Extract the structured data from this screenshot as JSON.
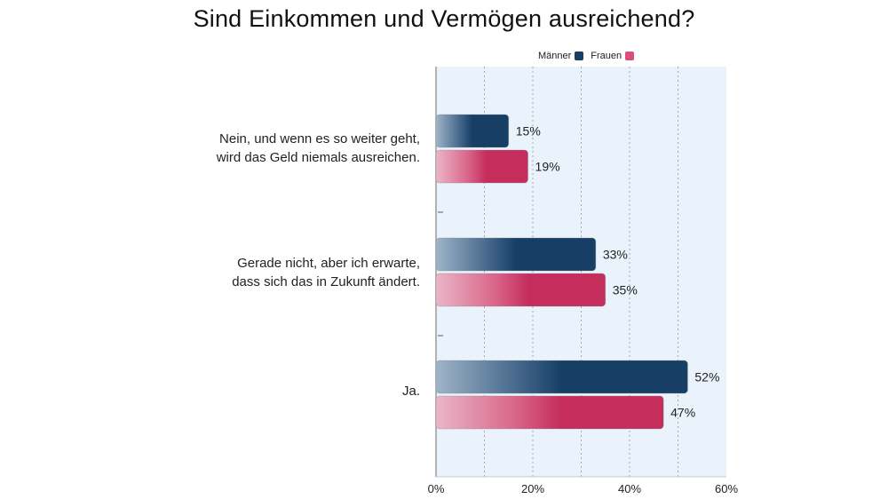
{
  "chart_data": {
    "type": "bar",
    "orientation": "horizontal",
    "title": "Sind Einkommen und Vermögen ausreichend?",
    "xlabel": "",
    "ylabel": "",
    "xlim": [
      0,
      60
    ],
    "x_ticks": [
      "0%",
      "20%",
      "40%",
      "60%"
    ],
    "x_tick_values": [
      0,
      20,
      40,
      60
    ],
    "gridlines": [
      10,
      20,
      30,
      40,
      50
    ],
    "grid": true,
    "legend_position": "top-right",
    "categories": [
      "Nein, und wenn es so weiter geht,\nwird das Geld niemals ausreichen.",
      "Gerade nicht, aber ich erwarte,\ndass sich das in Zukunft ändert.",
      "Ja."
    ],
    "series": [
      {
        "name": "Männer",
        "color": "#173f66",
        "values": [
          15,
          33,
          52
        ],
        "labels": [
          "15%",
          "33%",
          "52%"
        ]
      },
      {
        "name": "Frauen",
        "color": "#c42d5c",
        "values": [
          19,
          35,
          47
        ],
        "labels": [
          "19%",
          "35%",
          "47%"
        ]
      }
    ]
  }
}
